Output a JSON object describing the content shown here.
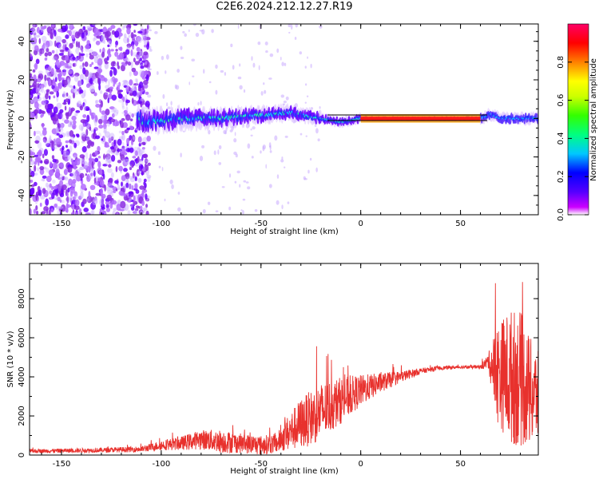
{
  "title": "C2E6.2024.212.12.27.R19",
  "chart_data": [
    {
      "type": "heatmap",
      "xlabel": "Height of straight line (km)",
      "ylabel": "Frequency (Hz)",
      "xlim": [
        -166,
        89
      ],
      "ylim": [
        -50,
        49
      ],
      "xticks": [
        -150,
        -100,
        -50,
        0,
        50
      ],
      "xtick_labels": [
        "-150",
        "-100",
        "-50",
        "0",
        "50"
      ],
      "yticks": [
        -40,
        -20,
        0,
        20,
        40
      ],
      "ytick_labels": [
        "-40",
        "-20",
        "0",
        "20",
        "40"
      ],
      "colorbar": {
        "label": "Normalized spectral amplitude",
        "range": [
          0,
          1
        ],
        "ticks": [
          0.0,
          0.2,
          0.4,
          0.6,
          0.8
        ],
        "tick_labels": [
          "0.0",
          "0.2",
          "0.4",
          "0.6",
          "0.8"
        ],
        "colors": [
          "#ffffff",
          "#cc00ff",
          "#5500ff",
          "#0000ff",
          "#00c8ff",
          "#00ff80",
          "#33ff00",
          "#ccff00",
          "#ffff00",
          "#ff8000",
          "#ff0000",
          "#ff0066"
        ]
      },
      "line_of_sight_path": [
        {
          "x": -110,
          "y": -2
        },
        {
          "x": -90,
          "y": 0
        },
        {
          "x": -70,
          "y": 0
        },
        {
          "x": -60,
          "y": 1
        },
        {
          "x": -45,
          "y": 2
        },
        {
          "x": -35,
          "y": 3
        },
        {
          "x": -20,
          "y": 0
        },
        {
          "x": -10,
          "y": -2
        },
        {
          "x": 0,
          "y": 0
        },
        {
          "x": 60,
          "y": 0
        },
        {
          "x": 65,
          "y": 2
        },
        {
          "x": 70,
          "y": 0
        },
        {
          "x": 89,
          "y": 0
        }
      ]
    },
    {
      "type": "line",
      "xlabel": "Height of straight line (km)",
      "ylabel": "SNR (10 * v/v)",
      "xlim": [
        -166,
        89
      ],
      "ylim": [
        0,
        9800
      ],
      "xticks": [
        -150,
        -100,
        -50,
        0,
        50
      ],
      "xtick_labels": [
        "-150",
        "-100",
        "-50",
        "0",
        "50"
      ],
      "yticks": [
        0,
        2000,
        4000,
        6000,
        8000
      ],
      "ytick_labels": [
        "0",
        "2000",
        "4000",
        "6000",
        "8000"
      ],
      "series": [
        {
          "color": "#e8312d",
          "envelope": [
            {
              "x": -166,
              "mean": 200,
              "amp": 100
            },
            {
              "x": -130,
              "mean": 250,
              "amp": 120
            },
            {
              "x": -110,
              "mean": 300,
              "amp": 150
            },
            {
              "x": -100,
              "mean": 500,
              "amp": 250
            },
            {
              "x": -90,
              "mean": 600,
              "amp": 350
            },
            {
              "x": -80,
              "mean": 800,
              "amp": 500
            },
            {
              "x": -70,
              "mean": 700,
              "amp": 600
            },
            {
              "x": -60,
              "mean": 600,
              "amp": 500
            },
            {
              "x": -50,
              "mean": 500,
              "amp": 500
            },
            {
              "x": -42,
              "mean": 600,
              "amp": 500
            },
            {
              "x": -38,
              "mean": 1000,
              "amp": 800
            },
            {
              "x": -30,
              "mean": 1600,
              "amp": 1300
            },
            {
              "x": -20,
              "mean": 2200,
              "amp": 1500
            },
            {
              "x": -10,
              "mean": 2800,
              "amp": 1200
            },
            {
              "x": 0,
              "mean": 3300,
              "amp": 800
            },
            {
              "x": 10,
              "mean": 3700,
              "amp": 500
            },
            {
              "x": 20,
              "mean": 4000,
              "amp": 300
            },
            {
              "x": 30,
              "mean": 4300,
              "amp": 150
            },
            {
              "x": 40,
              "mean": 4450,
              "amp": 100
            },
            {
              "x": 50,
              "mean": 4500,
              "amp": 80
            },
            {
              "x": 60,
              "mean": 4500,
              "amp": 100
            },
            {
              "x": 64,
              "mean": 4800,
              "amp": 400
            },
            {
              "x": 68,
              "mean": 4200,
              "amp": 2500
            },
            {
              "x": 75,
              "mean": 4000,
              "amp": 3500
            },
            {
              "x": 80,
              "mean": 3900,
              "amp": 3500
            },
            {
              "x": 85,
              "mean": 3200,
              "amp": 2800
            },
            {
              "x": 89,
              "mean": 3000,
              "amp": 2300
            }
          ]
        }
      ]
    }
  ]
}
